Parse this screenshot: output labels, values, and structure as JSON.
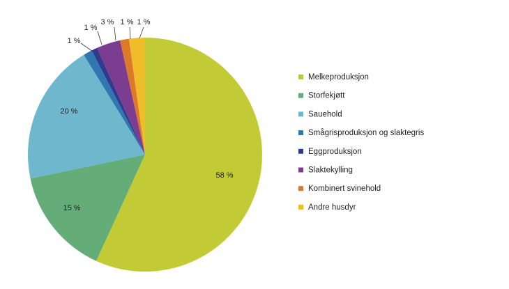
{
  "chart_data": {
    "type": "pie",
    "legend_position": "right",
    "slices": [
      {
        "name": "Melkeproduksjon",
        "value": 58,
        "label": "58 %",
        "color": "#c2cb35"
      },
      {
        "name": "Storfekjøtt",
        "value": 15,
        "label": "15 %",
        "color": "#64ac78"
      },
      {
        "name": "Sauehold",
        "value": 20,
        "label": "20 %",
        "color": "#6fb7cc"
      },
      {
        "name": "Smågrisproduksjon og slaktegris",
        "value": 1,
        "label": "1 %",
        "color": "#2e77b0"
      },
      {
        "name": "Eggproduksjon",
        "value": 1,
        "label": "1 %",
        "color": "#313b8d"
      },
      {
        "name": "Slaktekylling",
        "value": 3,
        "label": "3 %",
        "color": "#7c3d91"
      },
      {
        "name": "Kombinert svinehold",
        "value": 1,
        "label": "1 %",
        "color": "#dd7a2a"
      },
      {
        "name": "Andre husdyr",
        "value": 1,
        "label": "1 %",
        "color": "#f0bd2a"
      }
    ]
  }
}
